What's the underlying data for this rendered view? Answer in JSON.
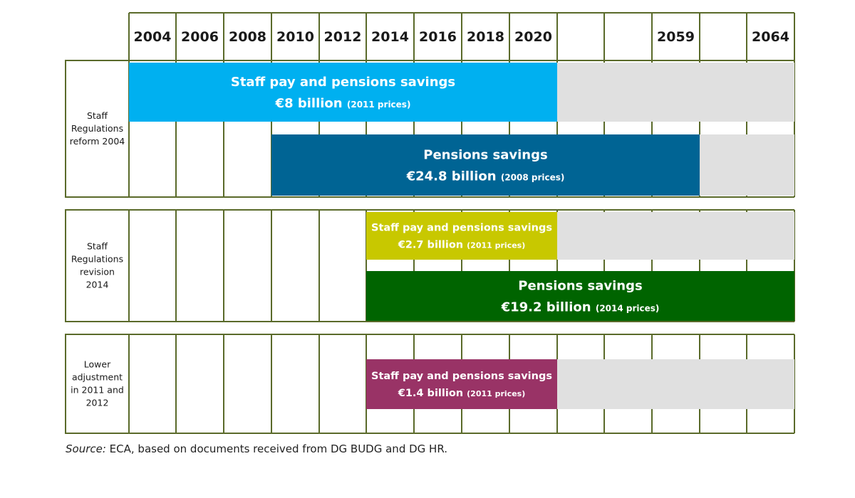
{
  "chart_data": {
    "type": "timeline",
    "title": "",
    "columns": [
      "2004",
      "2006",
      "2008",
      "2010",
      "2012",
      "2014",
      "2016",
      "2018",
      "2020",
      "",
      "",
      "2059",
      "",
      "2064"
    ],
    "groups": [
      {
        "label": [
          "Staff",
          "Regulations",
          "reform 2004"
        ],
        "bars": [
          {
            "name": "Staff pay and pensions savings",
            "amount": "€8 billion",
            "note": "(2011 prices)",
            "start": "2004",
            "end": "2020",
            "extends_to": "2064",
            "color": "#00b0f0",
            "shade": "#e0e0e0"
          },
          {
            "name": "Pensions savings",
            "amount": "€24.8 billion",
            "note": "(2008 prices)",
            "start": "2010",
            "end": "2059",
            "extends_to": "2064",
            "color": "#006494",
            "shade": "#e0e0e0"
          }
        ]
      },
      {
        "label": [
          "Staff",
          "Regulations",
          "revision",
          "2014"
        ],
        "bars": [
          {
            "name": "Staff pay and pensions savings",
            "amount": "€2.7 billion",
            "note": "(2011 prices)",
            "start": "2014",
            "end": "2020",
            "extends_to": "2064",
            "color": "#c8c800",
            "shade": "#e0e0e0"
          },
          {
            "name": "Pensions savings",
            "amount": "€19.2 billion",
            "note": "(2014 prices)",
            "start": "2014",
            "end": "2064",
            "extends_to": "2064",
            "color": "#006400",
            "shade": "#e0e0e0"
          }
        ]
      },
      {
        "label": [
          "Lower",
          "adjustment",
          "in 2011 and",
          "2012"
        ],
        "bars": [
          {
            "name": "Staff pay and pensions savings",
            "amount": "€1.4 billion",
            "note": "(2011 prices)",
            "start": "2014",
            "end": "2020",
            "extends_to": "2064",
            "color": "#993366",
            "shade": "#e0e0e0"
          }
        ]
      }
    ],
    "grid_color": "#5a6a2a"
  },
  "source": {
    "prefix": "Source:",
    "text": " ECA, based on documents received from DG BUDG and DG HR."
  }
}
